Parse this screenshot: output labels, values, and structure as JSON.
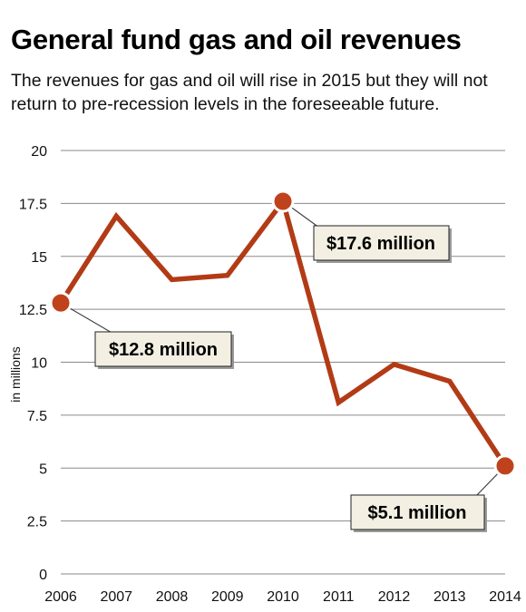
{
  "title": "General fund gas and oil revenues",
  "subtitle": "The revenues for gas and oil will rise in 2015 but they will not return to pre-recession levels in the foreseeable future.",
  "chart_data": {
    "type": "line",
    "title": "General fund gas and oil revenues",
    "xlabel": "",
    "ylabel": "in millions",
    "x": [
      "2006",
      "2007",
      "2008",
      "2009",
      "2010",
      "2011",
      "2012",
      "2013",
      "2014"
    ],
    "series": [
      {
        "values": [
          12.8,
          16.9,
          13.9,
          14.1,
          17.6,
          8.1,
          9.9,
          9.1,
          5.1
        ]
      }
    ],
    "ylim": [
      0,
      20
    ],
    "yticks": [
      0,
      2.5,
      5,
      7.5,
      10,
      12.5,
      15,
      17.5,
      20
    ],
    "ytick_labels": [
      "0",
      "2.5",
      "5",
      "7.5",
      "10",
      "12.5",
      "15",
      "17.5",
      "20"
    ],
    "grid": true,
    "line_color": "#b23b16",
    "marker_color": "#c0421c",
    "callouts": [
      {
        "index": 0,
        "text": "$12.8 million"
      },
      {
        "index": 4,
        "text": "$17.6 million"
      },
      {
        "index": 8,
        "text": "$5.1 million"
      }
    ]
  }
}
